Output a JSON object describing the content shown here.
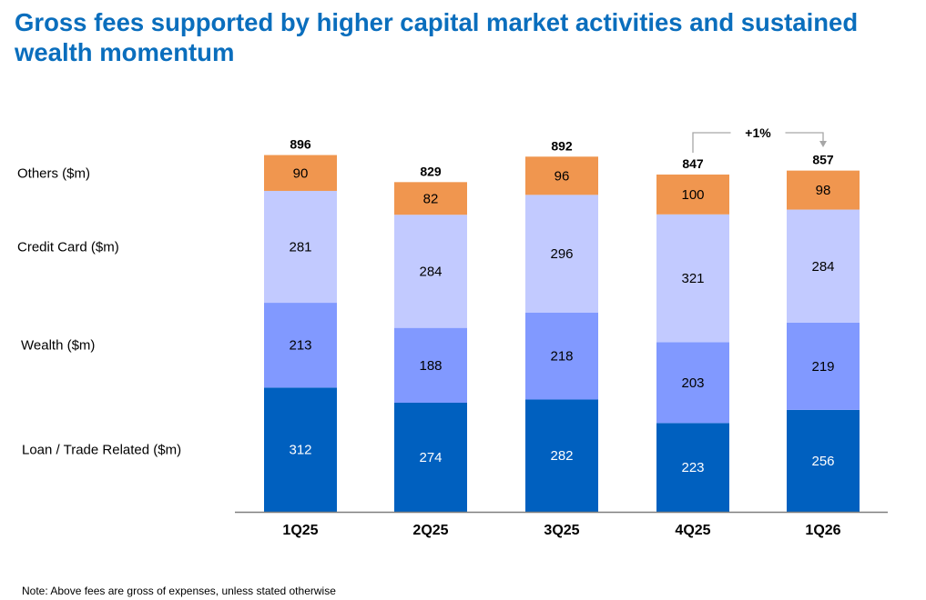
{
  "title": "Gross fees supported by higher capital market activities and sustained wealth momentum",
  "note": "Note: Above fees are gross of expenses, unless stated otherwise",
  "chart_data": {
    "type": "bar",
    "stacked": true,
    "categories": [
      "1Q25",
      "2Q25",
      "3Q25",
      "4Q25",
      "1Q26"
    ],
    "series": [
      {
        "name": "Loan / Trade Related ($m)",
        "color": "#0060bf",
        "label_color": "#ffffff",
        "values": [
          312,
          274,
          282,
          223,
          256
        ]
      },
      {
        "name": "Wealth ($m)",
        "color": "#8199ff",
        "label_color": "#000000",
        "values": [
          213,
          188,
          218,
          203,
          219
        ]
      },
      {
        "name": "Credit Card ($m)",
        "color": "#c2caff",
        "label_color": "#000000",
        "values": [
          281,
          284,
          296,
          321,
          284
        ]
      },
      {
        "name": "Others ($m)",
        "color": "#f0964f",
        "label_color": "#000000",
        "values": [
          90,
          82,
          96,
          100,
          98
        ]
      }
    ],
    "totals": [
      896,
      829,
      892,
      847,
      857
    ],
    "annotation": {
      "text": "+1%",
      "from": "4Q25",
      "to": "1Q26"
    },
    "ylim": [
      0,
      900
    ],
    "legend": "left-inline"
  }
}
